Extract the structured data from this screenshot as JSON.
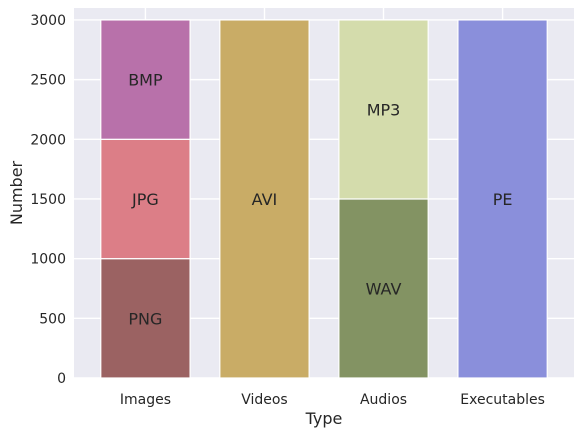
{
  "chart_data": {
    "type": "bar",
    "stacked": true,
    "categories": [
      "Images",
      "Videos",
      "Audios",
      "Executables"
    ],
    "segments": [
      {
        "category": "Images",
        "label": "PNG",
        "value": 1000,
        "color": "#9b6262"
      },
      {
        "category": "Images",
        "label": "JPG",
        "value": 1000,
        "color": "#dc7e87"
      },
      {
        "category": "Images",
        "label": "BMP",
        "value": 1000,
        "color": "#b871aa"
      },
      {
        "category": "Videos",
        "label": "AVI",
        "value": 3000,
        "color": "#c9ac66"
      },
      {
        "category": "Audios",
        "label": "WAV",
        "value": 1500,
        "color": "#839363"
      },
      {
        "category": "Audios",
        "label": "MP3",
        "value": 1500,
        "color": "#d4dcac"
      },
      {
        "category": "Executables",
        "label": "PE",
        "value": 3000,
        "color": "#8a8fdb"
      }
    ],
    "xlabel": "Type",
    "ylabel": "Number",
    "ylim": [
      0,
      3100
    ],
    "yticks": [
      "0",
      "500",
      "1000",
      "1500",
      "2000",
      "2500",
      "3000"
    ],
    "grid": true,
    "background": "#eaeaf2"
  }
}
